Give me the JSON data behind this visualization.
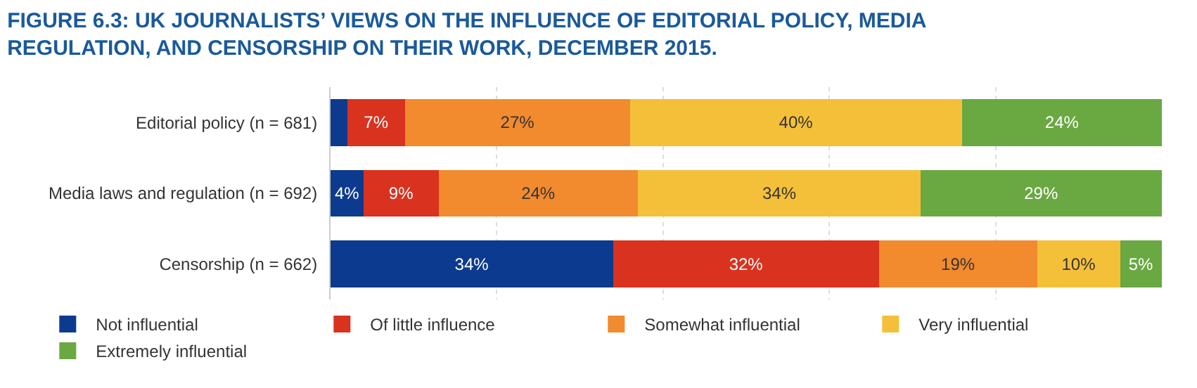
{
  "chart_data": {
    "type": "bar",
    "orientation": "horizontal",
    "stacked": true,
    "title": "FIGURE 6.3: UK JOURNALISTS’ VIEWS ON THE INFLUENCE OF EDITORIAL POLICY, MEDIA\nREGULATION, AND CENSORSHIP ON THEIR WORK, DECEMBER 2015.",
    "categories": [
      "Editorial policy (n = 681)",
      "Media laws and regulation (n = 692)",
      "Censorship (n = 662)"
    ],
    "series": [
      {
        "name": "Not influential",
        "color": "#0c3a8e",
        "values": [
          2,
          4,
          34
        ],
        "value_labels": [
          null,
          "4%",
          "34%"
        ]
      },
      {
        "name": "Of little influence",
        "color": "#d9321f",
        "values": [
          7,
          9,
          32
        ],
        "value_labels": [
          "7%",
          "9%",
          "32%"
        ]
      },
      {
        "name": "Somewhat influential",
        "color": "#f28a2e",
        "values": [
          27,
          24,
          19
        ],
        "value_labels": [
          "27%",
          "24%",
          "19%"
        ]
      },
      {
        "name": "Very influential",
        "color": "#f4c03a",
        "values": [
          40,
          34,
          10
        ],
        "value_labels": [
          "40%",
          "34%",
          "10%"
        ]
      },
      {
        "name": "Extremely influential",
        "color": "#6aa842",
        "values": [
          24,
          29,
          5
        ],
        "value_labels": [
          "24%",
          "29%",
          "5%"
        ]
      }
    ],
    "xlim": [
      0,
      100
    ],
    "xticks": [
      {
        "value": 0,
        "label": null
      },
      {
        "value": 20,
        "label": null
      },
      {
        "value": 40,
        "label": null
      },
      {
        "value": 60,
        "label": null
      },
      {
        "value": 80,
        "label": null
      }
    ],
    "grid": "x",
    "legend": "bottom",
    "tick_labels": "y"
  }
}
